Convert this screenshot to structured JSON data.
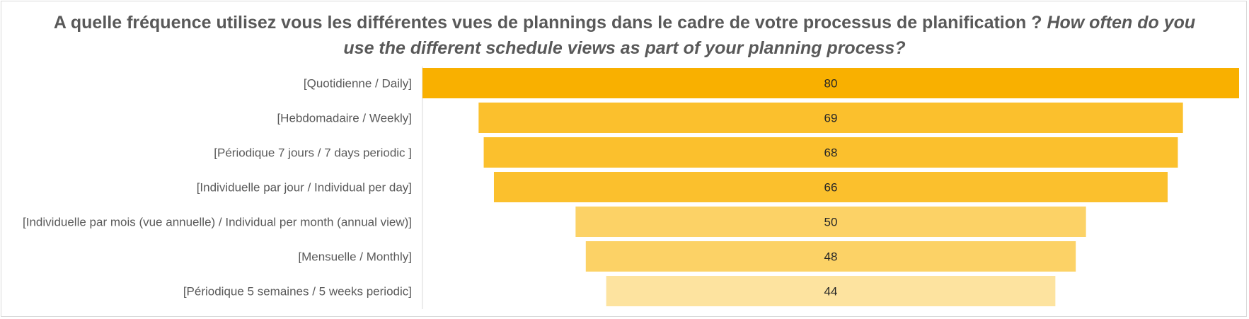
{
  "chart_data": {
    "type": "bar",
    "subtype": "funnel",
    "title_fr": "A quelle fréquence utilisez vous les différentes vues de plannings dans le cadre de votre processus de planification ?",
    "title_en": "How often do you use the different schedule views as part of your planning process?",
    "categories": [
      "[Quotidienne / Daily]",
      "[Hebdomadaire / Weekly]",
      "[Périodique 7 jours / 7 days periodic ]",
      "[Individuelle par jour / Individual per day]",
      "[Individuelle par mois (vue annuelle) / Individual per month (annual view)]",
      "[Mensuelle / Monthly]",
      "[Périodique 5 semaines / 5 weeks periodic]"
    ],
    "values": [
      80,
      69,
      68,
      66,
      50,
      48,
      44
    ],
    "colors": [
      "#f9b000",
      "#fbc02d",
      "#fbc02d",
      "#fbc02d",
      "#fcd266",
      "#fcd266",
      "#fde39f"
    ],
    "grid": false,
    "legend": "none"
  }
}
